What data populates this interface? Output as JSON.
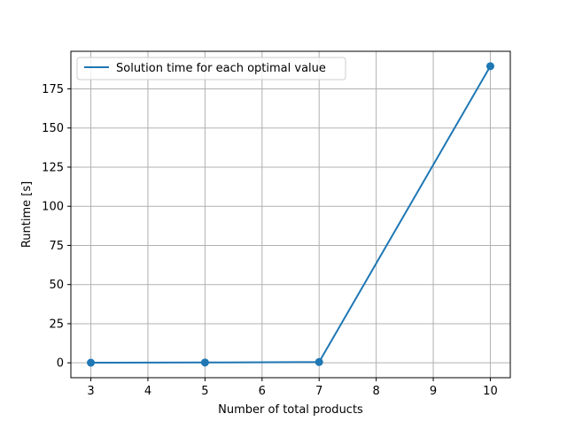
{
  "chart_data": {
    "type": "line",
    "title": "",
    "xlabel": "Number of total products",
    "ylabel": "Runtime [s]",
    "xlim": [
      2.65,
      10.35
    ],
    "ylim": [
      -9.5,
      199
    ],
    "xticks": [
      3,
      4,
      5,
      6,
      7,
      8,
      9,
      10
    ],
    "yticks": [
      0,
      25,
      50,
      75,
      100,
      125,
      150,
      175
    ],
    "grid": true,
    "legend_position": "upper-left",
    "series": [
      {
        "name": "Solution time for each optimal value",
        "color": "#1f77b4",
        "x": [
          3,
          5,
          7,
          10
        ],
        "y": [
          0.1,
          0.2,
          0.5,
          189.5
        ],
        "markers": true
      }
    ]
  }
}
